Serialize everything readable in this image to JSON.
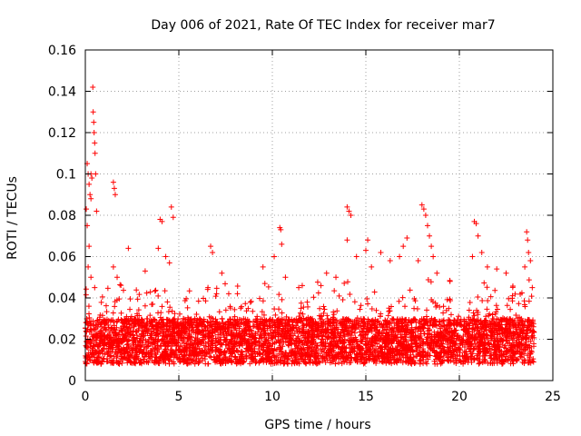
{
  "chart_data": {
    "type": "scatter",
    "title": "Day 006 of 2021, Rate Of TEC Index for receiver mar7",
    "xlabel": "GPS time / hours",
    "ylabel": "ROTI / TECUs",
    "xlim": [
      0,
      25
    ],
    "ylim": [
      0,
      0.16
    ],
    "xticks": [
      0,
      5,
      10,
      15,
      20,
      25
    ],
    "yticks": [
      0,
      0.02,
      0.04,
      0.06,
      0.08,
      0.1,
      0.12,
      0.14,
      0.16
    ],
    "x_tick_labels": [
      "0",
      "5",
      "10",
      "15",
      "20",
      "25"
    ],
    "y_tick_labels": [
      "0",
      "0.02",
      "0.04",
      "0.06",
      "0.08",
      "0.1",
      "0.12",
      "0.14",
      "0.16"
    ],
    "grid": true,
    "marker": "+",
    "series_color": "#ff0000",
    "series": [
      {
        "name": "ROTI",
        "band": {
          "x_range": [
            0,
            24
          ],
          "typical_low": 0.008,
          "typical_high": 0.03,
          "count": 4500
        },
        "points": [
          [
            0.1,
            0.105
          ],
          [
            0.15,
            0.1
          ],
          [
            0.2,
            0.095
          ],
          [
            0.25,
            0.09
          ],
          [
            0.3,
            0.1
          ],
          [
            0.35,
            0.098
          ],
          [
            0.4,
            0.142
          ],
          [
            0.42,
            0.13
          ],
          [
            0.45,
            0.125
          ],
          [
            0.47,
            0.12
          ],
          [
            0.5,
            0.115
          ],
          [
            0.52,
            0.11
          ],
          [
            0.55,
            0.1
          ],
          [
            0.3,
            0.088
          ],
          [
            0.6,
            0.082
          ],
          [
            0.05,
            0.083
          ],
          [
            0.1,
            0.075
          ],
          [
            0.2,
            0.065
          ],
          [
            0.15,
            0.055
          ],
          [
            0.3,
            0.05
          ],
          [
            0.5,
            0.045
          ],
          [
            1.5,
            0.096
          ],
          [
            1.55,
            0.093
          ],
          [
            1.6,
            0.09
          ],
          [
            1.5,
            0.055
          ],
          [
            1.7,
            0.05
          ],
          [
            2.3,
            0.064
          ],
          [
            3.2,
            0.053
          ],
          [
            3.9,
            0.064
          ],
          [
            4.0,
            0.078
          ],
          [
            4.1,
            0.077
          ],
          [
            4.6,
            0.084
          ],
          [
            4.7,
            0.079
          ],
          [
            4.5,
            0.057
          ],
          [
            4.3,
            0.06
          ],
          [
            6.7,
            0.065
          ],
          [
            6.8,
            0.062
          ],
          [
            7.3,
            0.052
          ],
          [
            9.5,
            0.055
          ],
          [
            9.6,
            0.047
          ],
          [
            10.4,
            0.074
          ],
          [
            10.45,
            0.073
          ],
          [
            10.5,
            0.066
          ],
          [
            10.1,
            0.06
          ],
          [
            10.7,
            0.05
          ],
          [
            11.6,
            0.046
          ],
          [
            12.6,
            0.046
          ],
          [
            12.9,
            0.052
          ],
          [
            13.4,
            0.05
          ],
          [
            14.0,
            0.084
          ],
          [
            14.1,
            0.082
          ],
          [
            14.2,
            0.08
          ],
          [
            14.0,
            0.068
          ],
          [
            14.5,
            0.06
          ],
          [
            15.1,
            0.068
          ],
          [
            15.0,
            0.063
          ],
          [
            15.3,
            0.055
          ],
          [
            15.8,
            0.062
          ],
          [
            16.3,
            0.058
          ],
          [
            16.8,
            0.06
          ],
          [
            17.0,
            0.065
          ],
          [
            17.2,
            0.069
          ],
          [
            18.0,
            0.085
          ],
          [
            18.1,
            0.083
          ],
          [
            18.2,
            0.08
          ],
          [
            18.3,
            0.075
          ],
          [
            18.4,
            0.07
          ],
          [
            18.5,
            0.065
          ],
          [
            18.6,
            0.06
          ],
          [
            17.8,
            0.058
          ],
          [
            18.8,
            0.052
          ],
          [
            19.5,
            0.048
          ],
          [
            20.8,
            0.077
          ],
          [
            20.9,
            0.076
          ],
          [
            21.0,
            0.07
          ],
          [
            21.2,
            0.062
          ],
          [
            20.7,
            0.06
          ],
          [
            21.5,
            0.055
          ],
          [
            22.0,
            0.054
          ],
          [
            22.5,
            0.052
          ],
          [
            23.6,
            0.072
          ],
          [
            23.65,
            0.068
          ],
          [
            23.7,
            0.062
          ],
          [
            23.8,
            0.058
          ],
          [
            23.5,
            0.055
          ],
          [
            23.9,
            0.045
          ]
        ]
      }
    ]
  }
}
